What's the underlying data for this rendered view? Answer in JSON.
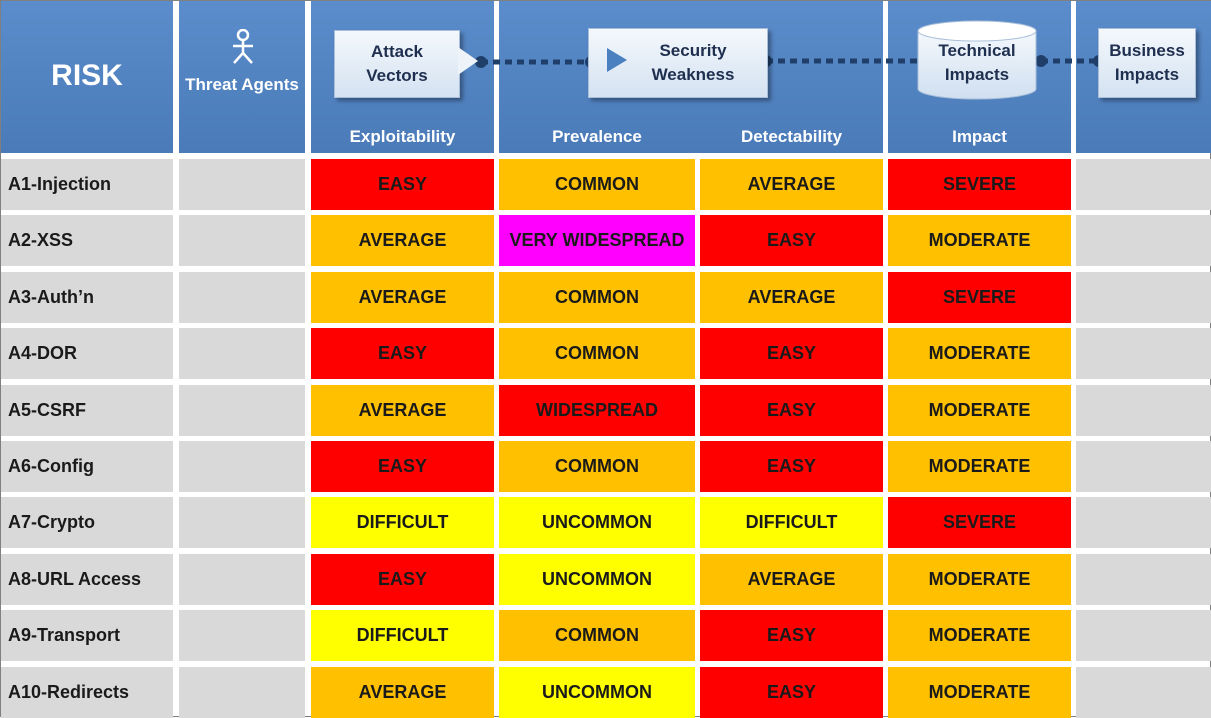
{
  "header": {
    "risk_title": "RISK",
    "threat_agents": "Threat Agents",
    "attack_vectors": "Attack Vectors",
    "security_weakness": "Security Weakness",
    "technical_impacts": "Technical Impacts",
    "business_impacts": "Business Impacts",
    "exploitability": "Exploitability",
    "prevalence": "Prevalence",
    "detectability": "Detectability",
    "impact": "Impact"
  },
  "colors": {
    "red": "#ff0000",
    "orange": "#ffc000",
    "yellow": "#ffff00",
    "magenta": "#ff00ff",
    "gray": "#d9d9d9",
    "header_blue": "#4f81bd"
  },
  "rows": [
    {
      "name": "A1-Injection",
      "exploitability": "EASY",
      "prevalence": "COMMON",
      "detectability": "AVERAGE",
      "impact": "SEVERE"
    },
    {
      "name": "A2-XSS",
      "exploitability": "AVERAGE",
      "prevalence": "VERY WIDESPREAD",
      "detectability": "EASY",
      "impact": "MODERATE"
    },
    {
      "name": "A3-Auth’n",
      "exploitability": "AVERAGE",
      "prevalence": "COMMON",
      "detectability": "AVERAGE",
      "impact": "SEVERE"
    },
    {
      "name": "A4-DOR",
      "exploitability": "EASY",
      "prevalence": "COMMON",
      "detectability": "EASY",
      "impact": "MODERATE"
    },
    {
      "name": "A5-CSRF",
      "exploitability": "AVERAGE",
      "prevalence": "WIDESPREAD",
      "detectability": "EASY",
      "impact": "MODERATE"
    },
    {
      "name": "A6-Config",
      "exploitability": "EASY",
      "prevalence": "COMMON",
      "detectability": "EASY",
      "impact": "MODERATE"
    },
    {
      "name": "A7-Crypto",
      "exploitability": "DIFFICULT",
      "prevalence": "UNCOMMON",
      "detectability": "DIFFICULT",
      "impact": "SEVERE"
    },
    {
      "name": "A8-URL Access",
      "exploitability": "EASY",
      "prevalence": "UNCOMMON",
      "detectability": "AVERAGE",
      "impact": "MODERATE"
    },
    {
      "name": "A9-Transport",
      "exploitability": "DIFFICULT",
      "prevalence": "COMMON",
      "detectability": "EASY",
      "impact": "MODERATE"
    },
    {
      "name": "A10-Redirects",
      "exploitability": "AVERAGE",
      "prevalence": "UNCOMMON",
      "detectability": "EASY",
      "impact": "MODERATE"
    }
  ]
}
